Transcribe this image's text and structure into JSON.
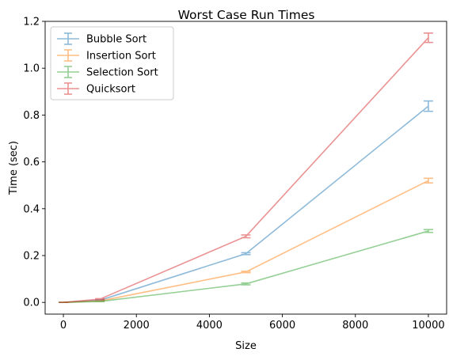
{
  "chart_data": {
    "type": "line",
    "title": "Worst Case Run Times",
    "xlabel": "Size",
    "ylabel": "Time (sec)",
    "xlim": [
      -500,
      10500
    ],
    "ylim": [
      -0.05,
      1.2
    ],
    "xticks": [
      0,
      2000,
      4000,
      6000,
      8000,
      10000
    ],
    "yticks": [
      0.0,
      0.2,
      0.4,
      0.6,
      0.8,
      1.0,
      1.2
    ],
    "grid": false,
    "legend_position": "top-left",
    "x": [
      0,
      1000,
      5000,
      10000
    ],
    "series": [
      {
        "name": "Bubble Sort",
        "color": "#1f77b4",
        "values": [
          0.0,
          0.009,
          0.208,
          0.838
        ],
        "errors": [
          0.0,
          0.002,
          0.004,
          0.022
        ]
      },
      {
        "name": "Insertion Sort",
        "color": "#ff7f0e",
        "values": [
          0.0,
          0.006,
          0.13,
          0.52
        ],
        "errors": [
          0.0,
          0.001,
          0.003,
          0.01
        ]
      },
      {
        "name": "Selection Sort",
        "color": "#2ca02c",
        "values": [
          0.0,
          0.004,
          0.079,
          0.305
        ],
        "errors": [
          0.0,
          0.001,
          0.004,
          0.006
        ]
      },
      {
        "name": "Quicksort",
        "color": "#d62728",
        "values": [
          0.0,
          0.014,
          0.282,
          1.13
        ],
        "errors": [
          0.0,
          0.002,
          0.006,
          0.02
        ]
      }
    ]
  }
}
